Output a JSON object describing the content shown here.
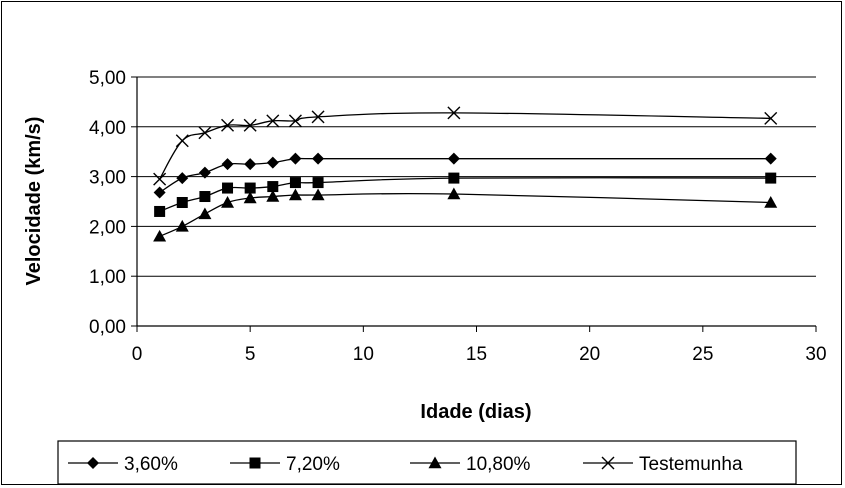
{
  "chart_data": {
    "type": "line",
    "title": "",
    "xlabel": "Idade (dias)",
    "ylabel": "Velocidade (km/s)",
    "xlim": [
      0,
      30
    ],
    "ylim": [
      0,
      5
    ],
    "xticks": [
      "0",
      "5",
      "10",
      "15",
      "20",
      "25",
      "30"
    ],
    "yticks": [
      "0,00",
      "1,00",
      "2,00",
      "3,00",
      "4,00",
      "5,00"
    ],
    "grid": "horizontal",
    "legend_position": "bottom",
    "x": [
      1,
      2,
      3,
      4,
      5,
      6,
      7,
      8,
      14,
      28
    ],
    "series": [
      {
        "name": "3,60%",
        "marker": "diamond",
        "color": "#000000",
        "values": [
          2.68,
          2.97,
          3.08,
          3.25,
          3.25,
          3.28,
          3.36,
          3.36,
          3.36,
          3.36
        ]
      },
      {
        "name": "7,20%",
        "marker": "square",
        "color": "#000000",
        "values": [
          2.3,
          2.48,
          2.6,
          2.77,
          2.77,
          2.8,
          2.88,
          2.88,
          2.97,
          2.97
        ]
      },
      {
        "name": "10,80%",
        "marker": "triangle",
        "color": "#000000",
        "values": [
          1.8,
          2.0,
          2.25,
          2.48,
          2.57,
          2.6,
          2.63,
          2.63,
          2.65,
          2.48
        ]
      },
      {
        "name": "Testemunha",
        "marker": "x",
        "color": "#000000",
        "values": [
          2.95,
          3.72,
          3.88,
          4.03,
          4.03,
          4.12,
          4.12,
          4.2,
          4.28,
          4.17
        ]
      }
    ]
  }
}
